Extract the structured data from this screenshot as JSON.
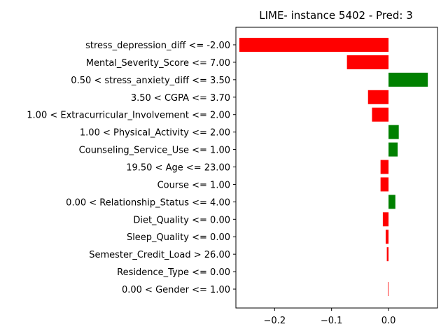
{
  "chart_data": {
    "type": "bar",
    "orientation": "horizontal",
    "title": "LIME- instance 5402 - Pred: 3",
    "xlabel": "",
    "ylabel": "",
    "xlim": [
      -0.268,
      0.086
    ],
    "xticks": [
      -0.2,
      -0.1,
      0.0
    ],
    "xtick_labels": [
      "−0.2",
      "−0.1",
      "0.0"
    ],
    "grid": false,
    "colors": {
      "positive": "#008000",
      "negative": "#ff0000"
    },
    "categories": [
      "stress_depression_diff <= -2.00",
      "Mental_Severity_Score <= 7.00",
      "0.50 < stress_anxiety_diff <= 3.50",
      "3.50 < CGPA <= 3.70",
      "1.00 < Extracurricular_Involvement <= 2.00",
      "1.00 < Physical_Activity <= 2.00",
      "Counseling_Service_Use <= 1.00",
      "19.50 < Age <= 23.00",
      "Course <= 1.00",
      "0.00 < Relationship_Status <= 4.00",
      "Diet_Quality <= 0.00",
      "Sleep_Quality <= 0.00",
      "Semester_Credit_Load > 26.00",
      "Residence_Type <= 0.00",
      "0.00 < Gender <= 1.00"
    ],
    "values": [
      -0.262,
      -0.073,
      0.069,
      -0.036,
      -0.029,
      0.018,
      0.016,
      -0.014,
      -0.014,
      0.012,
      -0.01,
      -0.005,
      -0.003,
      0.0,
      -0.001
    ]
  }
}
